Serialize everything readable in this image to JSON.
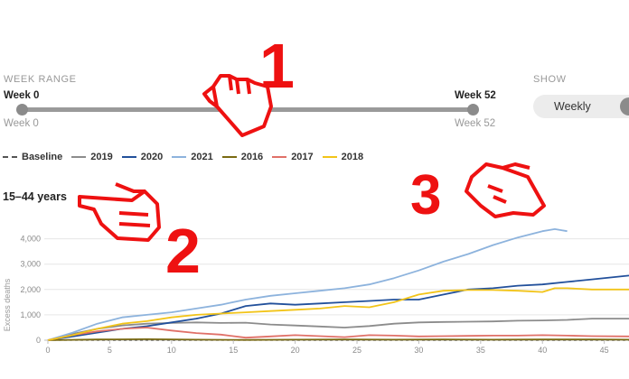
{
  "controls": {
    "week_range_label": "WEEK RANGE",
    "slider_start_top": "Week 0",
    "slider_end_top": "Week 52",
    "slider_start_bottom": "Week 0",
    "slider_end_bottom": "Week 52",
    "slider_range": [
      0,
      52
    ],
    "show_label": "SHOW",
    "toggle_label": "Weekly"
  },
  "legend": [
    {
      "label": "Baseline",
      "color": "#555555",
      "dashed": true
    },
    {
      "label": "2019",
      "color": "#8c8c8c"
    },
    {
      "label": "2020",
      "color": "#22509b"
    },
    {
      "label": "2021",
      "color": "#8db3dd"
    },
    {
      "label": "2016",
      "color": "#7a6a12"
    },
    {
      "label": "2017",
      "color": "#e07068"
    },
    {
      "label": "2018",
      "color": "#f2c419"
    }
  ],
  "annotations": {
    "n1": "1",
    "n2": "2",
    "n3": "3",
    "color": "#ee1111"
  },
  "chart_data": {
    "type": "line",
    "title": "15–44 years",
    "ylabel": "Excess deaths",
    "xlim": [
      0,
      47
    ],
    "ylim": [
      0,
      4200
    ],
    "x_ticks": [
      "0",
      "5",
      "10",
      "15",
      "20",
      "25",
      "30",
      "35",
      "40",
      "45"
    ],
    "y_ticks": [
      "0",
      "1,000",
      "2,000",
      "3,000",
      "4,000"
    ],
    "grid": true,
    "series": [
      {
        "name": "Baseline",
        "color": "#555555",
        "dashed": true,
        "x": [
          0,
          47
        ],
        "y": [
          0,
          0
        ]
      },
      {
        "name": "2019",
        "color": "#8c8c8c",
        "x": [
          0,
          2,
          4,
          6,
          8,
          10,
          12,
          14,
          16,
          18,
          20,
          22,
          24,
          26,
          28,
          30,
          32,
          34,
          36,
          38,
          40,
          42,
          44,
          47
        ],
        "y": [
          0,
          250,
          450,
          580,
          650,
          680,
          700,
          680,
          690,
          620,
          580,
          540,
          500,
          560,
          650,
          700,
          720,
          730,
          740,
          770,
          780,
          800,
          850,
          850
        ]
      },
      {
        "name": "2020",
        "color": "#22509b",
        "x": [
          0,
          2,
          4,
          6,
          8,
          10,
          12,
          14,
          16,
          18,
          20,
          22,
          24,
          26,
          28,
          30,
          32,
          34,
          36,
          38,
          40,
          42,
          44,
          47
        ],
        "y": [
          0,
          150,
          300,
          450,
          550,
          700,
          850,
          1050,
          1350,
          1450,
          1400,
          1450,
          1500,
          1550,
          1600,
          1600,
          1800,
          2000,
          2050,
          2150,
          2200,
          2300,
          2400,
          2550
        ]
      },
      {
        "name": "2021",
        "color": "#8db3dd",
        "x": [
          0,
          2,
          4,
          6,
          8,
          10,
          12,
          14,
          16,
          18,
          20,
          22,
          24,
          26,
          28,
          30,
          32,
          34,
          36,
          38,
          40,
          41,
          42
        ],
        "y": [
          0,
          300,
          650,
          900,
          1000,
          1100,
          1250,
          1400,
          1600,
          1750,
          1850,
          1950,
          2050,
          2200,
          2450,
          2750,
          3100,
          3400,
          3750,
          4050,
          4300,
          4380,
          4300
        ]
      },
      {
        "name": "2016",
        "color": "#7a6a12",
        "x": [
          0,
          4,
          8,
          12,
          16,
          20,
          24,
          28,
          32,
          36,
          40,
          44,
          47
        ],
        "y": [
          0,
          30,
          40,
          20,
          10,
          20,
          30,
          20,
          30,
          20,
          30,
          30,
          20
        ]
      },
      {
        "name": "2017",
        "color": "#e07068",
        "x": [
          0,
          2,
          4,
          6,
          8,
          10,
          12,
          14,
          16,
          18,
          20,
          22,
          24,
          26,
          28,
          30,
          32,
          34,
          36,
          38,
          40,
          42,
          44,
          47
        ],
        "y": [
          0,
          200,
          350,
          450,
          500,
          380,
          280,
          220,
          100,
          150,
          200,
          160,
          120,
          200,
          180,
          150,
          160,
          170,
          180,
          180,
          200,
          180,
          160,
          150
        ]
      },
      {
        "name": "2018",
        "color": "#f2c419",
        "x": [
          0,
          2,
          4,
          6,
          8,
          10,
          12,
          14,
          16,
          18,
          20,
          22,
          24,
          26,
          28,
          30,
          32,
          34,
          36,
          38,
          40,
          41,
          42,
          44,
          47
        ],
        "y": [
          0,
          200,
          450,
          650,
          750,
          900,
          1000,
          1050,
          1100,
          1150,
          1200,
          1250,
          1350,
          1300,
          1500,
          1800,
          1950,
          1980,
          1980,
          1950,
          1900,
          2050,
          2050,
          2000,
          2000
        ]
      }
    ]
  }
}
